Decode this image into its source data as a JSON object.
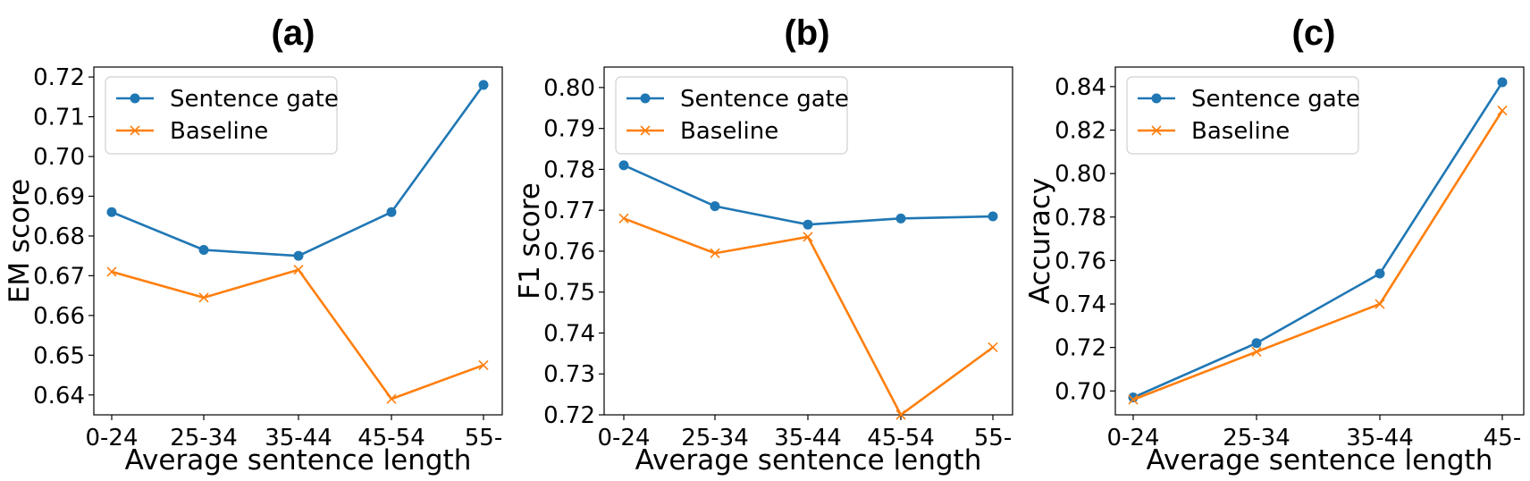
{
  "chart_data": [
    {
      "type": "line",
      "panel_title": "(a)",
      "xlabel": "Average sentence length",
      "ylabel": "EM score",
      "categories": [
        "0-24",
        "25-34",
        "35-44",
        "45-54",
        "55-"
      ],
      "ylim": [
        0.635,
        0.7225
      ],
      "yticks": [
        0.64,
        0.65,
        0.66,
        0.67,
        0.68,
        0.69,
        0.7,
        0.71,
        0.72
      ],
      "ytick_labels": [
        "0.64",
        "0.65",
        "0.66",
        "0.67",
        "0.68",
        "0.69",
        "0.70",
        "0.71",
        "0.72"
      ],
      "legend_position": "top-left",
      "grid": false,
      "series": [
        {
          "name": "Sentence gate",
          "color": "#1f77b4",
          "marker": "circle",
          "values": [
            0.686,
            0.6765,
            0.675,
            0.686,
            0.718
          ]
        },
        {
          "name": "Baseline",
          "color": "#ff7f0e",
          "marker": "x",
          "values": [
            0.671,
            0.6645,
            0.6715,
            0.639,
            0.6475
          ]
        }
      ]
    },
    {
      "type": "line",
      "panel_title": "(b)",
      "xlabel": "Average sentence length",
      "ylabel": "F1 score",
      "categories": [
        "0-24",
        "25-34",
        "35-44",
        "45-54",
        "55-"
      ],
      "ylim": [
        0.72,
        0.805
      ],
      "yticks": [
        0.72,
        0.73,
        0.74,
        0.75,
        0.76,
        0.77,
        0.78,
        0.79,
        0.8
      ],
      "ytick_labels": [
        "0.72",
        "0.73",
        "0.74",
        "0.75",
        "0.76",
        "0.77",
        "0.78",
        "0.79",
        "0.80"
      ],
      "legend_position": "top-left",
      "grid": false,
      "series": [
        {
          "name": "Sentence gate",
          "color": "#1f77b4",
          "marker": "circle",
          "values": [
            0.781,
            0.771,
            0.7665,
            0.768,
            0.7685
          ]
        },
        {
          "name": "Baseline",
          "color": "#ff7f0e",
          "marker": "x",
          "values": [
            0.768,
            0.7595,
            0.7635,
            0.72,
            0.7365
          ]
        }
      ]
    },
    {
      "type": "line",
      "panel_title": "(c)",
      "xlabel": "Average sentence length",
      "ylabel": "Accuracy",
      "categories": [
        "0-24",
        "25-34",
        "35-44",
        "45-"
      ],
      "ylim": [
        0.689,
        0.849
      ],
      "yticks": [
        0.7,
        0.72,
        0.74,
        0.76,
        0.78,
        0.8,
        0.82,
        0.84
      ],
      "ytick_labels": [
        "0.70",
        "0.72",
        "0.74",
        "0.76",
        "0.78",
        "0.80",
        "0.82",
        "0.84"
      ],
      "legend_position": "top-left",
      "grid": false,
      "series": [
        {
          "name": "Sentence gate",
          "color": "#1f77b4",
          "marker": "circle",
          "values": [
            0.697,
            0.722,
            0.754,
            0.842
          ]
        },
        {
          "name": "Baseline",
          "color": "#ff7f0e",
          "marker": "x",
          "values": [
            0.696,
            0.718,
            0.74,
            0.829
          ]
        }
      ]
    }
  ]
}
